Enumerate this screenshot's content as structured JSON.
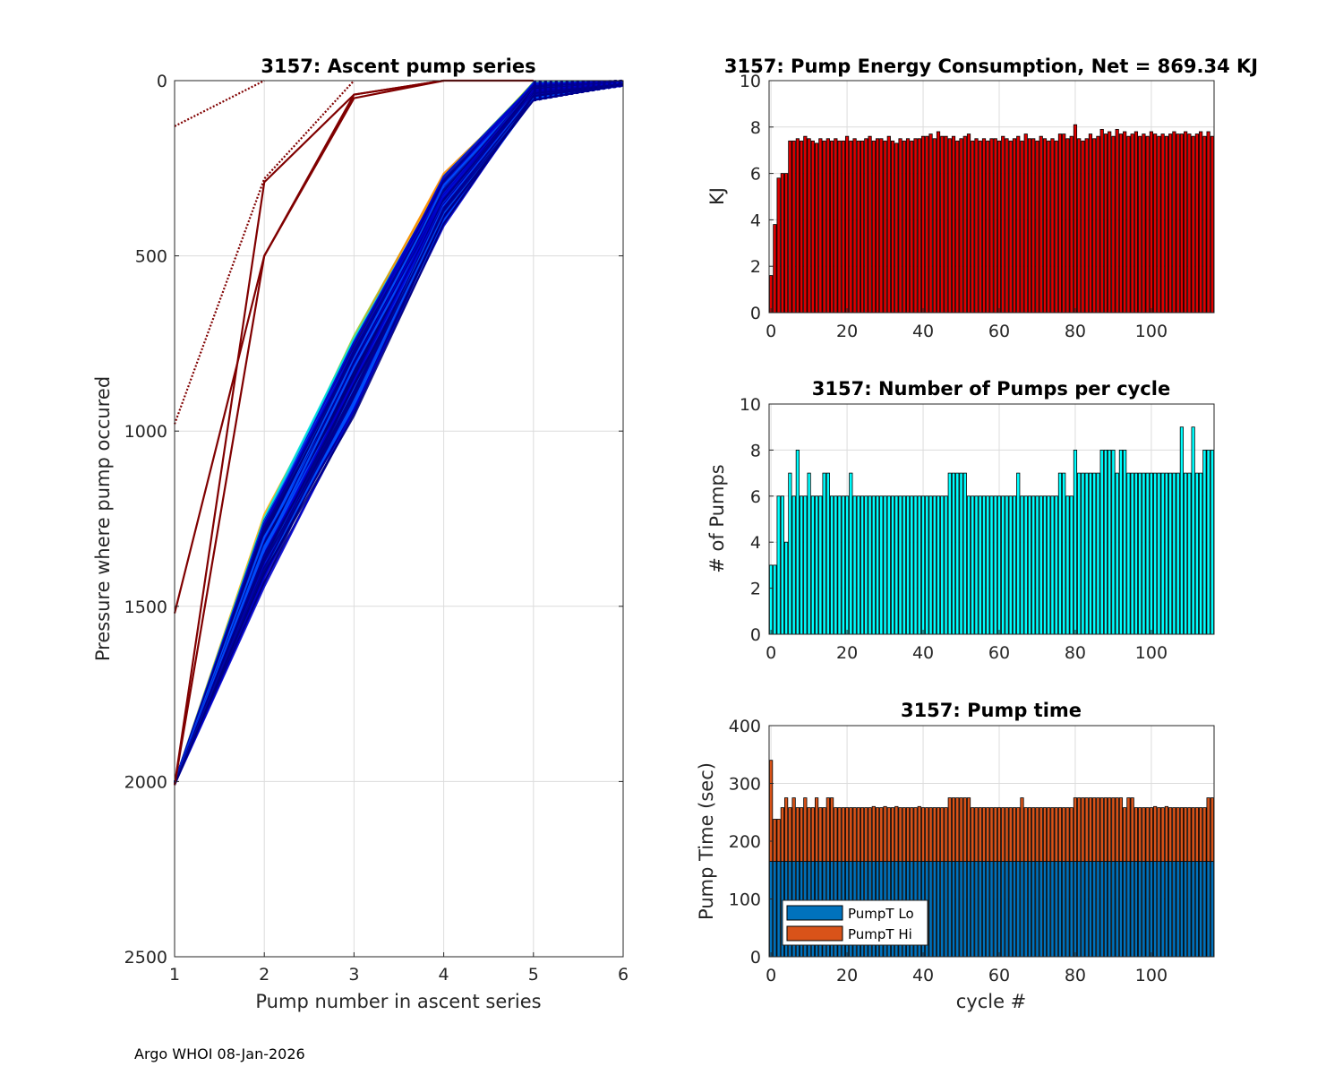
{
  "footer": "Argo WHOI 08-Jan-2026",
  "colors": {
    "energy": "#e00000",
    "pumps": "#00ffff",
    "lo": "#0072bd",
    "hi": "#d95319",
    "red_lines": "#800000",
    "dark_blue": "#00008f"
  },
  "chart_data": [
    {
      "id": "ascent",
      "type": "line",
      "title": "3157: Ascent pump series",
      "xlabel": "Pump number in ascent series",
      "ylabel": "Pressure where pump occured",
      "xlim": [
        1,
        6
      ],
      "ylim": [
        0,
        2500
      ],
      "y_reversed": true,
      "xticks": [
        "1",
        "2",
        "3",
        "4",
        "5",
        "6"
      ],
      "yticks": [
        "0",
        "500",
        "1000",
        "1500",
        "2000",
        "2500"
      ],
      "grid": true,
      "outlier_series": [
        {
          "name": "early-1",
          "x": [
            1,
            2
          ],
          "y": [
            130,
            0
          ]
        },
        {
          "name": "early-2",
          "x": [
            1,
            2,
            3
          ],
          "y": [
            980,
            280,
            0
          ]
        },
        {
          "name": "early-3",
          "x": [
            1,
            2,
            3,
            4
          ],
          "y": [
            1520,
            500,
            50,
            0
          ]
        },
        {
          "name": "early-4",
          "x": [
            1,
            2,
            3,
            4
          ],
          "y": [
            2010,
            290,
            40,
            0
          ]
        },
        {
          "name": "early-5",
          "x": [
            1,
            2,
            3,
            4,
            5
          ],
          "y": [
            2010,
            500,
            40,
            0,
            0
          ]
        }
      ],
      "envelope": {
        "x": [
          1,
          2,
          3,
          4,
          5,
          6
        ],
        "y_min": [
          2000,
          1230,
          720,
          260,
          0,
          0
        ],
        "y_max": [
          2010,
          1450,
          960,
          420,
          60,
          15
        ]
      }
    },
    {
      "id": "energy",
      "type": "bar",
      "title": "3157: Pump Energy Consumption,  Net = 869.34 KJ",
      "xlabel": "",
      "ylabel": "KJ",
      "xlim": [
        -0.5,
        116.5
      ],
      "ylim": [
        0,
        10
      ],
      "xticks": [
        "0",
        "20",
        "40",
        "60",
        "80",
        "100"
      ],
      "yticks": [
        "0",
        "2",
        "4",
        "6",
        "8",
        "10"
      ],
      "x_start": 0,
      "values": [
        1.6,
        3.8,
        5.8,
        6.0,
        6.0,
        7.4,
        7.4,
        7.5,
        7.4,
        7.6,
        7.5,
        7.4,
        7.3,
        7.5,
        7.4,
        7.5,
        7.4,
        7.5,
        7.4,
        7.4,
        7.6,
        7.4,
        7.5,
        7.4,
        7.4,
        7.5,
        7.6,
        7.4,
        7.5,
        7.5,
        7.4,
        7.6,
        7.4,
        7.3,
        7.5,
        7.4,
        7.5,
        7.4,
        7.5,
        7.5,
        7.6,
        7.6,
        7.7,
        7.5,
        7.8,
        7.6,
        7.6,
        7.5,
        7.6,
        7.4,
        7.5,
        7.6,
        7.7,
        7.4,
        7.5,
        7.4,
        7.5,
        7.4,
        7.5,
        7.5,
        7.4,
        7.6,
        7.5,
        7.4,
        7.5,
        7.6,
        7.4,
        7.7,
        7.5,
        7.5,
        7.4,
        7.6,
        7.5,
        7.4,
        7.5,
        7.4,
        7.7,
        7.7,
        7.5,
        7.6,
        8.1,
        7.5,
        7.4,
        7.5,
        7.7,
        7.5,
        7.6,
        7.9,
        7.7,
        7.8,
        7.6,
        7.9,
        7.7,
        7.8,
        7.6,
        7.7,
        7.8,
        7.6,
        7.7,
        7.6,
        7.8,
        7.7,
        7.6,
        7.7,
        7.6,
        7.7,
        7.8,
        7.7,
        7.7,
        7.8,
        7.7,
        7.6,
        7.7,
        7.8,
        7.6,
        7.8,
        7.6
      ]
    },
    {
      "id": "pumps",
      "type": "bar",
      "title": "3157: Number of Pumps per cycle",
      "xlabel": "",
      "ylabel": "# of Pumps",
      "xlim": [
        -0.5,
        116.5
      ],
      "ylim": [
        0,
        10
      ],
      "xticks": [
        "0",
        "20",
        "40",
        "60",
        "80",
        "100"
      ],
      "yticks": [
        "0",
        "2",
        "4",
        "6",
        "8",
        "10"
      ],
      "x_start": 0,
      "values": [
        3,
        3,
        6,
        6,
        4,
        7,
        6,
        8,
        6,
        6,
        7,
        6,
        6,
        6,
        7,
        7,
        6,
        6,
        6,
        6,
        6,
        7,
        6,
        6,
        6,
        6,
        6,
        6,
        6,
        6,
        6,
        6,
        6,
        6,
        6,
        6,
        6,
        6,
        6,
        6,
        6,
        6,
        6,
        6,
        6,
        6,
        6,
        7,
        7,
        7,
        7,
        7,
        6,
        6,
        6,
        6,
        6,
        6,
        6,
        6,
        6,
        6,
        6,
        6,
        6,
        7,
        6,
        6,
        6,
        6,
        6,
        6,
        6,
        6,
        6,
        6,
        7,
        7,
        6,
        6,
        8,
        7,
        7,
        7,
        7,
        7,
        7,
        8,
        8,
        8,
        8,
        7,
        8,
        8,
        7,
        7,
        7,
        7,
        7,
        7,
        7,
        7,
        7,
        7,
        7,
        7,
        7,
        7,
        9,
        7,
        7,
        9,
        7,
        7,
        8,
        8,
        8
      ]
    },
    {
      "id": "pumptime",
      "type": "bar",
      "stacked": true,
      "title": "3157: Pump time",
      "xlabel": "cycle #",
      "ylabel": "Pump Time (sec)",
      "xlim": [
        -0.5,
        116.5
      ],
      "ylim": [
        0,
        400
      ],
      "xticks": [
        "0",
        "20",
        "40",
        "60",
        "80",
        "100"
      ],
      "yticks": [
        "0",
        "100",
        "200",
        "300",
        "400"
      ],
      "legend": [
        "PumpT Lo",
        "PumpT Hi"
      ],
      "legend_location": "bottom-left",
      "x_start": 0,
      "series": [
        {
          "name": "PumpT Lo",
          "values": [
            165,
            165,
            165,
            165,
            165,
            165,
            165,
            165,
            165,
            165,
            165,
            165,
            165,
            165,
            165,
            165,
            165,
            165,
            165,
            165,
            165,
            165,
            165,
            165,
            165,
            165,
            165,
            165,
            165,
            165,
            165,
            165,
            165,
            165,
            165,
            165,
            165,
            165,
            165,
            165,
            165,
            165,
            165,
            165,
            165,
            165,
            165,
            165,
            165,
            165,
            165,
            165,
            165,
            165,
            165,
            165,
            165,
            165,
            165,
            165,
            165,
            165,
            165,
            165,
            165,
            165,
            165,
            165,
            165,
            165,
            165,
            165,
            165,
            165,
            165,
            165,
            165,
            165,
            165,
            165,
            165,
            165,
            165,
            165,
            165,
            165,
            165,
            165,
            165,
            165,
            165,
            165,
            165,
            165,
            165,
            165,
            165,
            165,
            165,
            165,
            165,
            165,
            165,
            165,
            165,
            165,
            165,
            165,
            165,
            165,
            165,
            165,
            165,
            165,
            165,
            165,
            165
          ]
        },
        {
          "name": "PumpT Hi",
          "values": [
            175,
            73,
            73,
            93,
            110,
            93,
            110,
            93,
            93,
            110,
            93,
            93,
            110,
            93,
            93,
            110,
            110,
            93,
            93,
            93,
            93,
            93,
            93,
            93,
            93,
            93,
            93,
            95,
            93,
            93,
            95,
            93,
            93,
            95,
            93,
            93,
            93,
            93,
            93,
            95,
            93,
            93,
            93,
            93,
            93,
            93,
            93,
            110,
            110,
            110,
            110,
            110,
            110,
            93,
            93,
            93,
            93,
            93,
            93,
            93,
            93,
            93,
            93,
            93,
            93,
            93,
            110,
            93,
            93,
            93,
            93,
            93,
            93,
            93,
            93,
            93,
            93,
            93,
            93,
            93,
            110,
            110,
            110,
            110,
            110,
            110,
            110,
            110,
            110,
            110,
            110,
            110,
            110,
            93,
            110,
            110,
            93,
            93,
            93,
            93,
            93,
            95,
            93,
            93,
            95,
            93,
            93,
            93,
            93,
            93,
            93,
            93,
            93,
            93,
            93,
            110,
            110
          ]
        }
      ]
    }
  ]
}
